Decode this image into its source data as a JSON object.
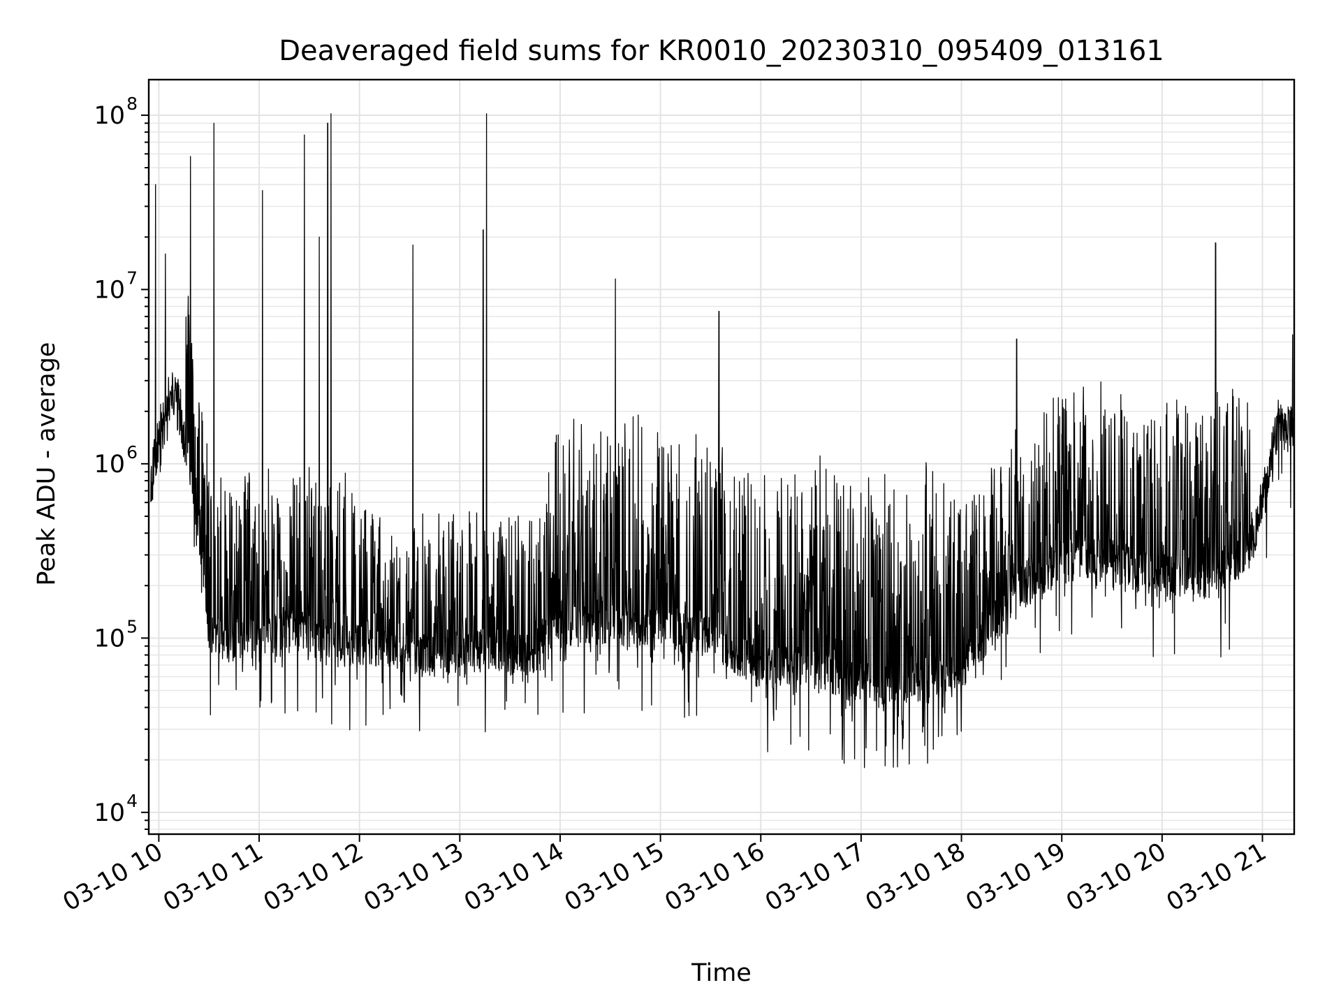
{
  "chart_data": {
    "type": "line",
    "title": "Deaveraged field sums for KR0010_20230310_095409_013161",
    "xlabel": "Time",
    "ylabel": "Peak ADU - average",
    "yscale": "log",
    "ylim": [
      7500,
      160000000
    ],
    "xlim": [
      "03-10 09:54",
      "03-10 21:19"
    ],
    "x_ticks": [
      "03-10 10",
      "03-10 11",
      "03-10 12",
      "03-10 13",
      "03-10 14",
      "03-10 15",
      "03-10 16",
      "03-10 17",
      "03-10 18",
      "03-10 19",
      "03-10 20",
      "03-10 21"
    ],
    "y_ticks": [
      {
        "value": 10000,
        "base": "10",
        "exp": "4"
      },
      {
        "value": 100000,
        "base": "10",
        "exp": "5"
      },
      {
        "value": 1000000,
        "base": "10",
        "exp": "6"
      },
      {
        "value": 10000000,
        "base": "10",
        "exp": "7"
      },
      {
        "value": 100000000,
        "base": "10",
        "exp": "8"
      }
    ],
    "grid": true,
    "line_color": "#000000",
    "series": [
      {
        "x": [
          "03-10 09:55",
          "03-10 10:00",
          "03-10 10:10",
          "03-10 10:20",
          "03-10 10:30",
          "03-10 10:40",
          "03-10 10:50",
          "03-10 11:00",
          "03-10 11:20",
          "03-10 11:40",
          "03-10 12:00",
          "03-10 12:20",
          "03-10 12:40",
          "03-10 13:00",
          "03-10 13:20",
          "03-10 13:40",
          "03-10 14:00",
          "03-10 14:30",
          "03-10 15:00",
          "03-10 15:30",
          "03-10 16:00",
          "03-10 16:30",
          "03-10 17:00",
          "03-10 17:30",
          "03-10 18:00",
          "03-10 18:30",
          "03-10 19:00",
          "03-10 19:30",
          "03-10 20:00",
          "03-10 20:30",
          "03-10 20:55",
          "03-10 21:10",
          "03-10 21:19"
        ],
        "y": [
          500000,
          1200000,
          2000000,
          800000,
          100000,
          90000,
          90000,
          85000,
          100000,
          90000,
          80000,
          75000,
          70000,
          70000,
          80000,
          70000,
          100000,
          110000,
          100000,
          90000,
          60000,
          60000,
          50000,
          50000,
          60000,
          150000,
          250000,
          250000,
          200000,
          200000,
          300000,
          1500000,
          1300000
        ]
      }
    ],
    "peaks": [
      {
        "x": "03-10 09:58",
        "y": 40000000
      },
      {
        "x": "03-10 10:04",
        "y": 16000000
      },
      {
        "x": "03-10 10:19",
        "y": 58000000
      },
      {
        "x": "03-10 10:33",
        "y": 90000000
      },
      {
        "x": "03-10 11:02",
        "y": 37000000
      },
      {
        "x": "03-10 11:27",
        "y": 77000000
      },
      {
        "x": "03-10 11:36",
        "y": 20000000
      },
      {
        "x": "03-10 11:41",
        "y": 90000000
      },
      {
        "x": "03-10 11:43",
        "y": 102000000
      },
      {
        "x": "03-10 12:32",
        "y": 18000000
      },
      {
        "x": "03-10 13:14",
        "y": 22000000
      },
      {
        "x": "03-10 13:16",
        "y": 102000000
      },
      {
        "x": "03-10 14:33",
        "y": 11500000
      },
      {
        "x": "03-10 15:35",
        "y": 7500000
      },
      {
        "x": "03-10 18:33",
        "y": 5200000
      },
      {
        "x": "03-10 20:32",
        "y": 18500000
      },
      {
        "x": "03-10 21:18",
        "y": 5500000
      }
    ]
  }
}
